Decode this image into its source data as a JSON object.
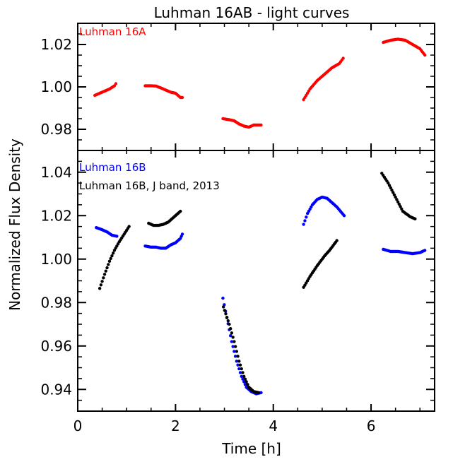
{
  "title": "Luhman 16AB - light curves",
  "xlabel": "Time [h]",
  "ylabel": "Normalized Flux Density",
  "colors": {
    "luhman16a": "#ff0000",
    "luhman16b": "#0000ff",
    "jband2013": "#000000"
  },
  "chart_data": [
    {
      "type": "scatter",
      "panel": "top",
      "xlim": [
        0,
        7.3
      ],
      "ylim": [
        0.97,
        1.03
      ],
      "xticks": [
        0,
        2,
        4,
        6
      ],
      "yticks": [
        0.98,
        1.0,
        1.02
      ],
      "ytick_labels": [
        "0.98",
        "1.00",
        "1.02"
      ],
      "legend_position": "top-left",
      "series": [
        {
          "name": "Luhman 16A",
          "color": "#ff0000",
          "segments": [
            {
              "x": [
                0.35,
                0.45,
                0.55,
                0.65,
                0.75,
                0.78
              ],
              "y": [
                0.996,
                0.997,
                0.998,
                0.999,
                1.0005,
                1.0015
              ]
            },
            {
              "x": [
                1.38,
                1.5,
                1.6,
                1.7,
                1.8,
                1.9,
                2.0,
                2.1,
                2.14
              ],
              "y": [
                1.0005,
                1.0005,
                1.0004,
                0.9995,
                0.9985,
                0.9975,
                0.997,
                0.995,
                0.995
              ]
            },
            {
              "x": [
                2.97,
                3.1,
                3.2,
                3.3,
                3.4,
                3.5,
                3.6,
                3.7,
                3.75
              ],
              "y": [
                0.985,
                0.9845,
                0.984,
                0.9825,
                0.9815,
                0.981,
                0.982,
                0.982,
                0.982
              ]
            },
            {
              "x": [
                4.62,
                4.75,
                4.9,
                5.05,
                5.2,
                5.35,
                5.43
              ],
              "y": [
                0.994,
                0.999,
                1.003,
                1.006,
                1.009,
                1.011,
                1.0135
              ]
            },
            {
              "x": [
                6.25,
                6.4,
                6.55,
                6.7,
                6.85,
                7.0,
                7.1
              ],
              "y": [
                1.021,
                1.022,
                1.0225,
                1.022,
                1.02,
                1.018,
                1.015
              ]
            }
          ]
        }
      ]
    },
    {
      "type": "scatter",
      "panel": "bottom",
      "xlim": [
        0,
        7.3
      ],
      "ylim": [
        0.93,
        1.05
      ],
      "xticks": [
        0,
        2,
        4,
        6
      ],
      "yticks": [
        0.94,
        0.96,
        0.98,
        1.0,
        1.02,
        1.04
      ],
      "ytick_labels": [
        "0.94",
        "0.96",
        "0.98",
        "1.00",
        "1.02",
        "1.04"
      ],
      "xtick_labels": [
        "0",
        "2",
        "4",
        "6"
      ],
      "legend_position": "top-left",
      "series": [
        {
          "name": "Luhman 16B",
          "color": "#0000ff",
          "segments": [
            {
              "x": [
                0.38,
                0.5,
                0.6,
                0.7,
                0.8
              ],
              "y": [
                1.0145,
                1.0135,
                1.0125,
                1.011,
                1.0105
              ]
            },
            {
              "x": [
                1.38,
                1.5,
                1.6,
                1.7,
                1.8,
                1.9,
                2.0,
                2.1,
                2.14
              ],
              "y": [
                1.006,
                1.0055,
                1.0055,
                1.005,
                1.005,
                1.0065,
                1.0075,
                1.0095,
                1.0115
              ]
            },
            {
              "x": [
                2.97,
                3.05,
                3.15,
                3.25,
                3.35,
                3.45,
                3.55,
                3.65,
                3.75
              ],
              "y": [
                0.982,
                0.973,
                0.962,
                0.953,
                0.946,
                0.941,
                0.939,
                0.938,
                0.9385
              ]
            },
            {
              "x": [
                4.62,
                4.7,
                4.8,
                4.9,
                5.0,
                5.1,
                5.2,
                5.3,
                5.45
              ],
              "y": [
                1.016,
                1.021,
                1.025,
                1.0275,
                1.0285,
                1.028,
                1.026,
                1.024,
                1.02
              ]
            },
            {
              "x": [
                6.25,
                6.4,
                6.55,
                6.7,
                6.85,
                7.0,
                7.1
              ],
              "y": [
                1.0045,
                1.0035,
                1.0035,
                1.003,
                1.0025,
                1.003,
                1.004
              ]
            }
          ]
        },
        {
          "name": "Luhman 16B, J band, 2013",
          "color": "#000000",
          "segments": [
            {
              "x": [
                0.45,
                0.55,
                0.65,
                0.75,
                0.85,
                0.95,
                1.05
              ],
              "y": [
                0.9865,
                0.993,
                0.999,
                1.004,
                1.008,
                1.0115,
                1.015
              ]
            },
            {
              "x": [
                1.45,
                1.55,
                1.65,
                1.75,
                1.85,
                1.95,
                2.05,
                2.1
              ],
              "y": [
                1.0165,
                1.0155,
                1.0155,
                1.016,
                1.017,
                1.019,
                1.021,
                1.022
              ]
            },
            {
              "x": [
                2.98,
                3.1,
                3.2,
                3.3,
                3.4,
                3.5,
                3.6,
                3.7
              ],
              "y": [
                0.978,
                0.97,
                0.962,
                0.953,
                0.946,
                0.941,
                0.939,
                0.9385
              ]
            },
            {
              "x": [
                4.62,
                4.75,
                4.9,
                5.05,
                5.15,
                5.3
              ],
              "y": [
                0.987,
                0.992,
                0.997,
                1.0015,
                1.004,
                1.0085
              ]
            },
            {
              "x": [
                6.22,
                6.35,
                6.5,
                6.65,
                6.8,
                6.9
              ],
              "y": [
                1.0395,
                1.035,
                1.0285,
                1.022,
                1.0195,
                1.0185
              ]
            }
          ]
        }
      ]
    }
  ]
}
